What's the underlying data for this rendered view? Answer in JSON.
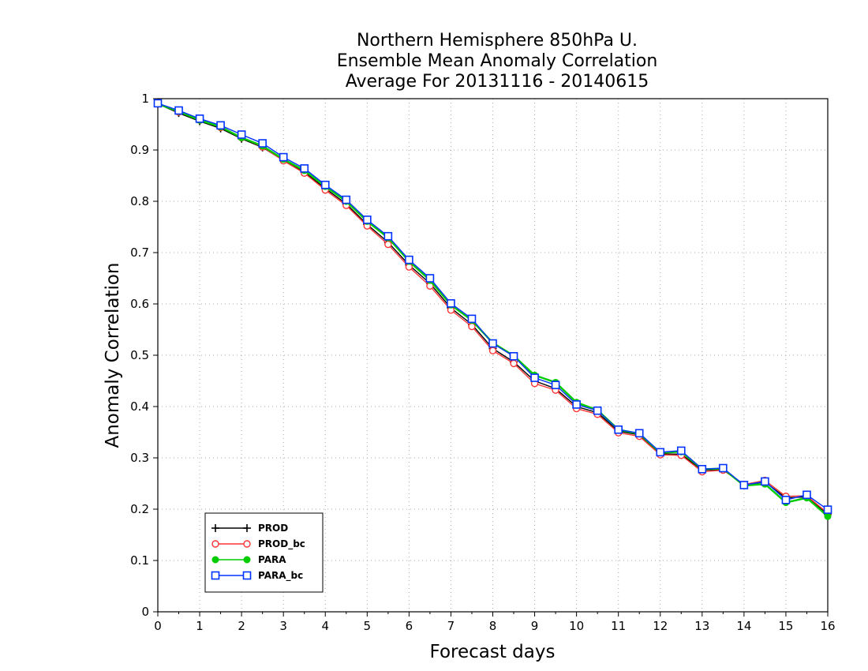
{
  "chart_data": {
    "type": "line",
    "title": [
      "Northern Hemisphere 850hPa U.",
      "Ensemble Mean Anomaly Correlation",
      "Average For 20131116 - 20140615"
    ],
    "xlabel": "Forecast days",
    "ylabel": "Anomaly Correlation",
    "xlim": [
      0,
      16
    ],
    "ylim": [
      0,
      1
    ],
    "xticks": [
      "0",
      "1",
      "2",
      "3",
      "4",
      "5",
      "6",
      "7",
      "8",
      "9",
      "10",
      "11",
      "12",
      "13",
      "14",
      "15",
      "16"
    ],
    "yticks": [
      "0",
      "0.1",
      "0.2",
      "0.3",
      "0.4",
      "0.5",
      "0.6",
      "0.7",
      "0.8",
      "0.9",
      "1"
    ],
    "grid": true,
    "legend_position": "bottom-left",
    "x": [
      0,
      0.5,
      1,
      1.5,
      2,
      2.5,
      3,
      3.5,
      4,
      4.5,
      5,
      5.5,
      6,
      6.5,
      7,
      7.5,
      8,
      8.5,
      9,
      9.5,
      10,
      10.5,
      11,
      11.5,
      12,
      12.5,
      13,
      13.5,
      14,
      14.5,
      15,
      15.5,
      16
    ],
    "series": [
      {
        "name": "PROD",
        "color": "#000000",
        "marker": "plus",
        "values": [
          0.99,
          0.972,
          0.956,
          0.942,
          0.922,
          0.905,
          0.88,
          0.857,
          0.825,
          0.795,
          0.755,
          0.72,
          0.676,
          0.64,
          0.592,
          0.56,
          0.513,
          0.487,
          0.45,
          0.435,
          0.4,
          0.388,
          0.352,
          0.345,
          0.308,
          0.307,
          0.276,
          0.277,
          0.247,
          0.253,
          0.222,
          0.224,
          0.19
        ]
      },
      {
        "name": "PROD_bc",
        "color": "#ff3333",
        "marker": "circle",
        "values": [
          0.99,
          0.974,
          0.958,
          0.944,
          0.924,
          0.906,
          0.879,
          0.855,
          0.822,
          0.792,
          0.752,
          0.716,
          0.672,
          0.635,
          0.588,
          0.556,
          0.509,
          0.484,
          0.445,
          0.432,
          0.396,
          0.385,
          0.349,
          0.342,
          0.306,
          0.305,
          0.273,
          0.276,
          0.248,
          0.256,
          0.225,
          0.226,
          0.192
        ]
      },
      {
        "name": "PARA",
        "color": "#00cc00",
        "marker": "filled-circle",
        "values": [
          0.99,
          0.975,
          0.958,
          0.945,
          0.924,
          0.908,
          0.882,
          0.86,
          0.829,
          0.8,
          0.761,
          0.729,
          0.683,
          0.646,
          0.598,
          0.568,
          0.524,
          0.499,
          0.461,
          0.447,
          0.408,
          0.393,
          0.355,
          0.347,
          0.31,
          0.312,
          0.278,
          0.279,
          0.246,
          0.249,
          0.213,
          0.222,
          0.186
        ]
      },
      {
        "name": "PARA_bc",
        "color": "#0033ff",
        "marker": "square",
        "values": [
          0.991,
          0.977,
          0.961,
          0.948,
          0.93,
          0.913,
          0.886,
          0.864,
          0.832,
          0.803,
          0.764,
          0.732,
          0.686,
          0.65,
          0.601,
          0.571,
          0.523,
          0.498,
          0.456,
          0.442,
          0.404,
          0.392,
          0.355,
          0.348,
          0.311,
          0.314,
          0.278,
          0.28,
          0.247,
          0.254,
          0.218,
          0.228,
          0.199
        ]
      }
    ]
  }
}
